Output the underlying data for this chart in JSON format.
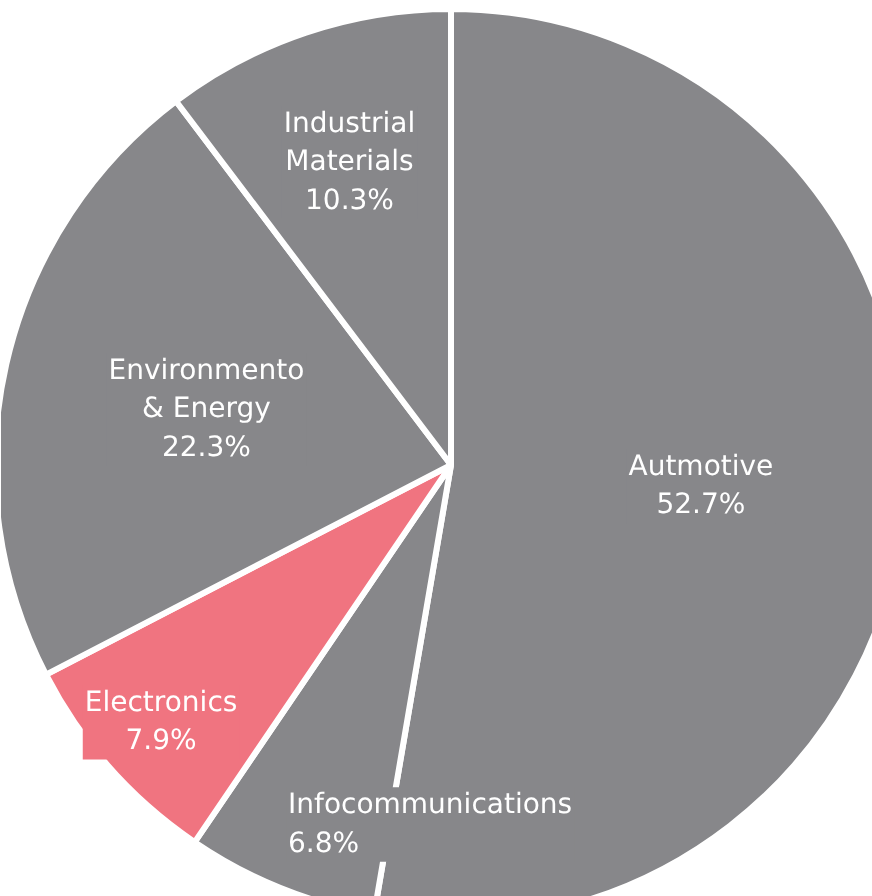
{
  "chart_data": {
    "type": "pie",
    "categories": [
      "Autmotive",
      "Infocommunications",
      "Electronics",
      "Environmento\n& Energy",
      "Industrial\nMaterials"
    ],
    "values": [
      52.7,
      6.8,
      7.9,
      22.3,
      10.3
    ],
    "value_labels": [
      "52.7%",
      "6.8%",
      "7.9%",
      "22.3%",
      "10.3%"
    ],
    "colors": [
      "#87878a",
      "#87878a",
      "#f07480",
      "#87878a",
      "#87878a"
    ]
  }
}
